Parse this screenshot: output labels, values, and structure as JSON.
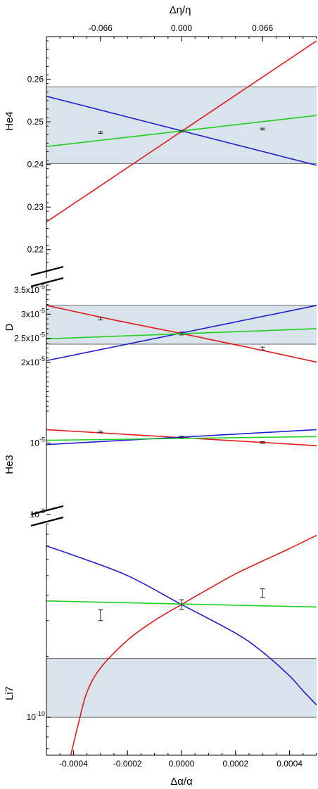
{
  "chart_data": {
    "type": "line",
    "x_axis": {
      "label": "Δα/α",
      "range": [
        -0.0005,
        0.0005
      ],
      "ticks": [
        "-0.0004",
        "-0.0002",
        "0.0000",
        "0.0002",
        "0.0004"
      ]
    },
    "top_axis": {
      "label": "Δη/η",
      "ticks": [
        "-0.066",
        "0.000",
        "0.066"
      ]
    },
    "colors": {
      "red": "#e41a1c",
      "blue": "#1f1fd0",
      "green": "#1fd01f",
      "band": "#d9e3eb",
      "errorbar": "#222222"
    },
    "panels": [
      {
        "id": "he4",
        "label": "He4",
        "scale": "linear",
        "ylim": [
          0.215,
          0.27
        ],
        "ticks": [
          {
            "v": 0.22,
            "t": "0.22"
          },
          {
            "v": 0.23,
            "t": "0.23"
          },
          {
            "v": 0.24,
            "t": "0.24"
          },
          {
            "v": 0.25,
            "t": "0.25"
          },
          {
            "v": 0.26,
            "t": "0.26"
          }
        ],
        "band": [
          0.2402,
          0.2582
        ],
        "series": [
          {
            "color": "red",
            "x": [
              -0.0005,
              0.0005
            ],
            "y": [
              0.2265,
              0.269
            ]
          },
          {
            "color": "blue",
            "x": [
              -0.0005,
              0.0005
            ],
            "y": [
              0.256,
              0.2398
            ]
          },
          {
            "color": "green",
            "x": [
              -0.0005,
              0.0005
            ],
            "y": [
              0.2442,
              0.2515
            ]
          }
        ],
        "points": [
          {
            "x": -0.0003,
            "y": 0.2475,
            "err": 0.0002
          },
          {
            "x": 0.0,
            "y": 0.2478,
            "err": 0.0002
          },
          {
            "x": 0.0003,
            "y": 0.2483,
            "err": 0.0002
          }
        ]
      },
      {
        "id": "d",
        "label": "D",
        "scale": "linear",
        "ylim": [
          1e-05,
          3.6e-05
        ],
        "ticks": [
          {
            "v": 2e-05,
            "t": "2x10",
            "e": "-5"
          },
          {
            "v": 2.5e-05,
            "t": "2.5x10",
            "e": "-5"
          },
          {
            "v": 3e-05,
            "t": "3x10",
            "e": "-5"
          },
          {
            "v": 3.5e-05,
            "t": "3.5x10",
            "e": "-5"
          }
        ],
        "band": [
          2.38e-05,
          3.18e-05
        ],
        "series": [
          {
            "color": "red",
            "x": [
              -0.0005,
              -0.00025,
              0.0,
              0.00025,
              0.0005
            ],
            "y": [
              3.18e-05,
              2.88e-05,
              2.6e-05,
              2.31e-05,
              2.01e-05
            ]
          },
          {
            "color": "blue",
            "x": [
              -0.0005,
              0.0005
            ],
            "y": [
              2.04e-05,
              3.18e-05
            ]
          },
          {
            "color": "green",
            "x": [
              -0.0005,
              0.0005
            ],
            "y": [
              2.49e-05,
              2.7e-05
            ]
          }
        ],
        "points": [
          {
            "x": -0.0003,
            "y": 2.91e-05,
            "err": 3e-07
          },
          {
            "x": 0.0,
            "y": 2.6e-05,
            "err": 3e-07
          },
          {
            "x": 0.0003,
            "y": 2.29e-05,
            "err": 3e-07
          }
        ]
      },
      {
        "id": "he3",
        "label": "He3",
        "scale": "linear",
        "ylim": [
          9e-06,
          1.06e-05
        ],
        "ticks": [
          {
            "v": 1e-05,
            "t": "10",
            "e": "-5"
          }
        ],
        "series": [
          {
            "color": "red",
            "x": [
              -0.0005,
              0.0005
            ],
            "y": [
              1.025e-05,
              9.95e-06
            ]
          },
          {
            "color": "blue",
            "x": [
              -0.0005,
              0.0005
            ],
            "y": [
              9.97e-06,
              1.025e-05
            ]
          },
          {
            "color": "green",
            "x": [
              -0.0005,
              0.0005
            ],
            "y": [
              1.005e-05,
              1.012e-05
            ]
          }
        ],
        "points": [
          {
            "x": -0.0003,
            "y": 1.021e-05,
            "err": 1.5e-08
          },
          {
            "x": 0.0,
            "y": 1.011e-05,
            "err": 1.5e-08
          },
          {
            "x": 0.0003,
            "y": 1.001e-05,
            "err": 1.5e-08
          }
        ]
      },
      {
        "id": "li7",
        "label": "Li7",
        "scale": "log",
        "ylim": [
          6.5e-11,
          1.05e-09
        ],
        "ticks": [
          {
            "v": 1e-09,
            "t": "10",
            "e": "-9"
          },
          {
            "v": 1e-10,
            "t": "10",
            "e": "-10"
          }
        ],
        "band": [
          1e-10,
          1.95e-10
        ],
        "series": [
          {
            "color": "red",
            "x": [
              -0.00041,
              -0.00038,
              -0.00035,
              -0.0003,
              -0.0002,
              -0.0001,
              0.0,
              0.0001,
              0.0002,
              0.0003,
              0.0004,
              0.0005
            ],
            "y": [
              6.5e-11,
              9.5e-11,
              1.33e-10,
              1.75e-10,
              2.4e-10,
              3e-10,
              3.6e-10,
              4.3e-10,
              5.1e-10,
              5.9e-10,
              6.8e-10,
              7.9e-10
            ]
          },
          {
            "color": "blue",
            "x": [
              -0.0005,
              -0.0004,
              -0.0002,
              0.0,
              0.0002,
              0.0003,
              0.0004,
              0.00045,
              0.0005
            ],
            "y": [
              7e-10,
              6.3e-10,
              5e-10,
              3.6e-10,
              2.6e-10,
              2.1e-10,
              1.6e-10,
              1.35e-10,
              1.15e-10
            ]
          },
          {
            "color": "green",
            "x": [
              -0.0005,
              0.0005
            ],
            "y": [
              3.75e-10,
              3.5e-10
            ]
          }
        ],
        "points": [
          {
            "x": -0.0003,
            "y": 3.2e-10,
            "err": 2e-11
          },
          {
            "x": 0.0,
            "y": 3.6e-10,
            "err": 2e-11
          },
          {
            "x": 0.0003,
            "y": 4.1e-10,
            "err": 2e-11
          }
        ]
      }
    ]
  }
}
